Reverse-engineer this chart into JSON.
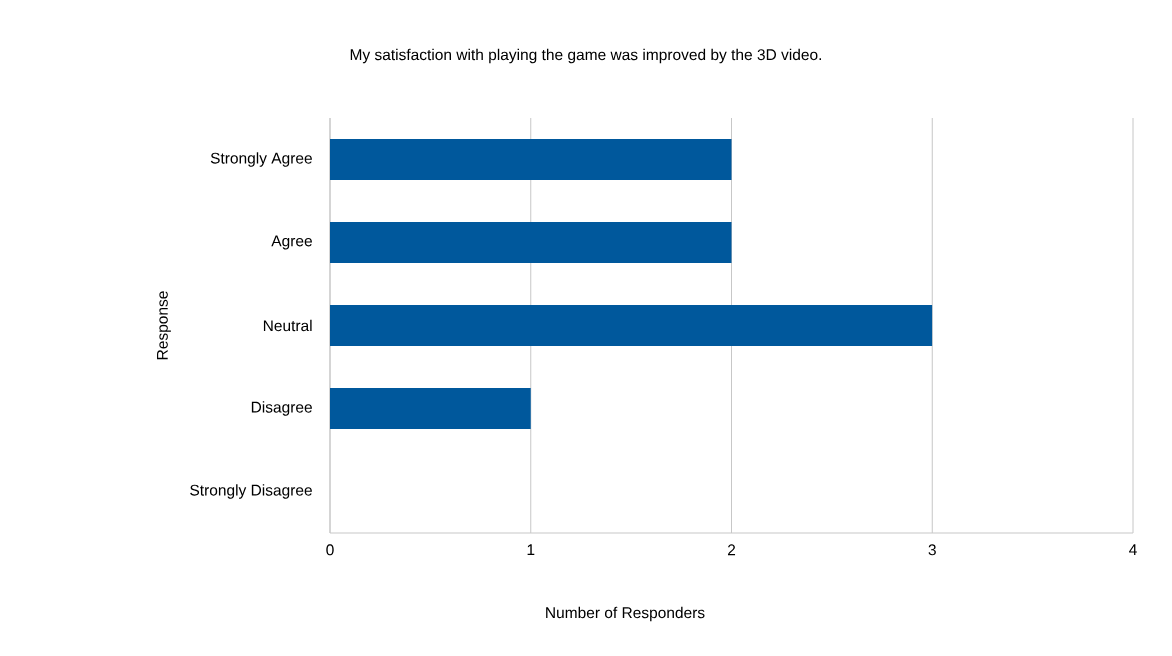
{
  "chart_data": {
    "type": "bar",
    "orientation": "horizontal",
    "title": "My satisfaction with playing the game was improved by the 3D video.",
    "xlabel": "Number of Responders",
    "ylabel": "Response",
    "categories": [
      "Strongly Agree",
      "Agree",
      "Neutral",
      "Disagree",
      "Strongly Disagree"
    ],
    "values": [
      2,
      2,
      3,
      1,
      0
    ],
    "color": "#00589c",
    "xlim": [
      0,
      4
    ],
    "xticks": [
      0,
      1,
      2,
      3,
      4
    ],
    "grid": "x"
  }
}
